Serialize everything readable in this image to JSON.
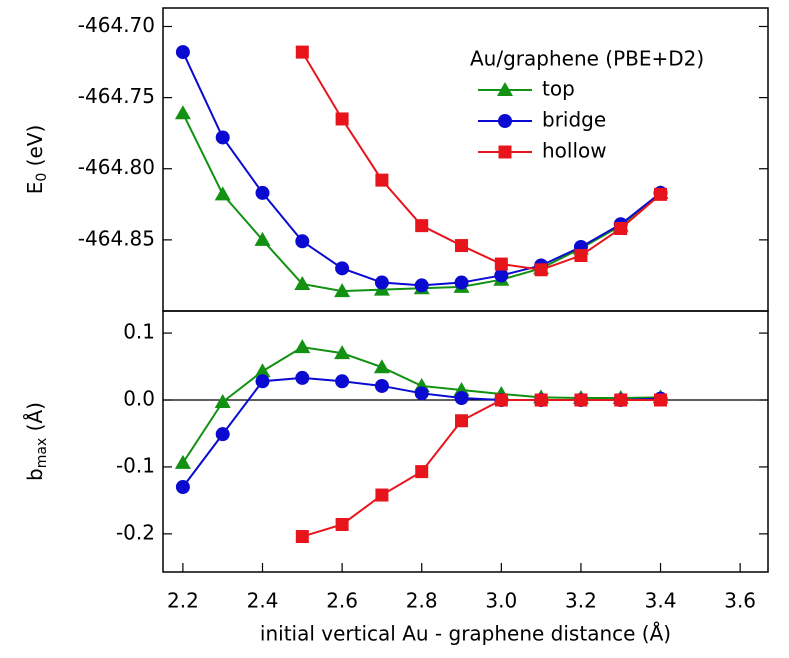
{
  "chart_data": [
    {
      "type": "line",
      "legend_title": "Au/graphene (PBE+D2)",
      "legend": "upper right",
      "ylabel": {
        "main": "E",
        "sub": "0",
        "unit": "(eV)"
      },
      "x": [
        2.2,
        2.3,
        2.4,
        2.5,
        2.6,
        2.7,
        2.8,
        2.9,
        3.0,
        3.1,
        3.2,
        3.3,
        3.4
      ],
      "xlim": [
        2.15,
        3.67
      ],
      "ylim": [
        -464.9,
        -464.687
      ],
      "yticks": [
        {
          "value": -464.7,
          "label": "-464.70"
        },
        -464.75,
        {
          "value": -464.8,
          "label": "-464.80"
        },
        -464.85
      ],
      "series": [
        {
          "name": "top",
          "color": "#129112",
          "marker": "triangle",
          "values": [
            -464.761,
            -464.818,
            -464.85,
            -464.881,
            -464.886,
            -464.885,
            -464.884,
            -464.883,
            -464.878,
            -464.87,
            -464.856,
            -464.84,
            -464.817
          ]
        },
        {
          "name": "bridge",
          "color": "#0a0ad0",
          "marker": "circle",
          "values": [
            -464.718,
            -464.778,
            -464.817,
            -464.851,
            -464.87,
            -464.88,
            -464.882,
            -464.88,
            -464.875,
            -464.868,
            -464.855,
            -464.839,
            -464.817
          ]
        },
        {
          "name": "hollow",
          "color": "#e8141c",
          "marker": "square",
          "values": [
            null,
            null,
            null,
            -464.718,
            -464.765,
            -464.808,
            -464.84,
            -464.854,
            -464.867,
            -464.871,
            -464.861,
            -464.842,
            -464.818
          ]
        }
      ]
    },
    {
      "type": "line",
      "ylabel": {
        "main": "b",
        "sub": "max",
        "unit": "(Å)"
      },
      "xlabel": "initial vertical Au - graphene distance (Å)",
      "x": [
        2.2,
        2.3,
        2.4,
        2.5,
        2.6,
        2.7,
        2.8,
        2.9,
        3.0,
        3.1,
        3.2,
        3.3,
        3.4
      ],
      "xlim": [
        2.15,
        3.67
      ],
      "xticks": [
        2.2,
        2.4,
        2.6,
        2.8,
        {
          "value": 3,
          "label": "3.0"
        },
        3.2,
        3.4,
        3.6
      ],
      "ylim": [
        -0.257,
        0.133
      ],
      "yticks": [
        0.1,
        {
          "value": 0,
          "label": "0.0"
        },
        -0.1,
        -0.2
      ],
      "hline": 0,
      "series": [
        {
          "name": "top",
          "color": "#129112",
          "marker": "triangle",
          "values": [
            -0.094,
            -0.003,
            0.043,
            0.079,
            0.07,
            0.049,
            0.021,
            0.015,
            0.009,
            0.004,
            0.003,
            0.003,
            0.004
          ]
        },
        {
          "name": "bridge",
          "color": "#0a0ad0",
          "marker": "circle",
          "values": [
            -0.13,
            -0.051,
            0.028,
            0.033,
            0.028,
            0.021,
            0.01,
            0.003,
            0,
            0,
            0,
            0,
            0.002
          ]
        },
        {
          "name": "hollow",
          "color": "#e8141c",
          "marker": "square",
          "values": [
            null,
            null,
            null,
            -0.204,
            -0.186,
            -0.142,
            -0.107,
            -0.031,
            0,
            0,
            0,
            0,
            0
          ]
        }
      ]
    }
  ]
}
